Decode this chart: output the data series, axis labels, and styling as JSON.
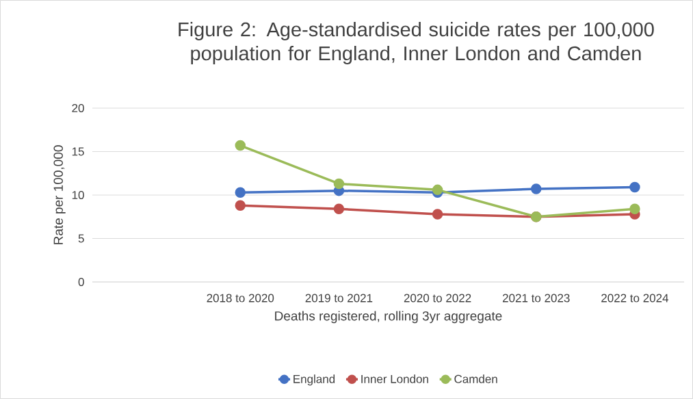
{
  "chart_data": {
    "type": "line",
    "title": "Figure 2: Age-standardised suicide rates per 100,000 population for England, Inner London and Camden",
    "xlabel": "Deaths registered, rolling 3yr aggregate",
    "ylabel": "Rate per 100,000",
    "categories": [
      null,
      "2018 to 2020",
      "2019 to 2021",
      "2020 to 2022",
      "2021 to 2023",
      "2022 to 2024"
    ],
    "series": [
      {
        "name": "England",
        "color": "#4472c4",
        "values": [
          null,
          10.3,
          10.5,
          10.3,
          10.7,
          10.9
        ]
      },
      {
        "name": "Inner London",
        "color": "#c0504d",
        "values": [
          null,
          8.8,
          8.4,
          7.8,
          7.5,
          7.8
        ]
      },
      {
        "name": "Camden",
        "color": "#9bbb59",
        "values": [
          null,
          15.7,
          11.3,
          10.6,
          7.5,
          8.4
        ]
      }
    ],
    "ylim": [
      0,
      20
    ],
    "yticks": [
      0,
      5,
      10,
      15,
      20
    ],
    "grid": "y",
    "legend": "bottom",
    "marker": "circle",
    "line_style": "solid"
  }
}
